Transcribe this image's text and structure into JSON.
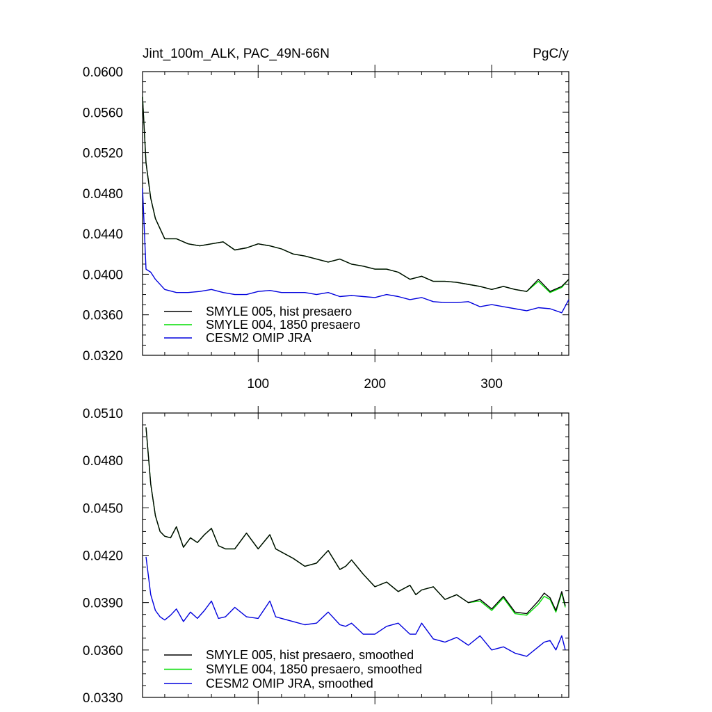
{
  "chart_data": [
    {
      "type": "line",
      "title": "Jint_100m_ALK, PAC_49N-66N",
      "units": "PgC/y",
      "xlim": [
        1,
        366
      ],
      "ylim": [
        0.032,
        0.06
      ],
      "y_ticks": [
        "0.0320",
        "0.0360",
        "0.0400",
        "0.0440",
        "0.0480",
        "0.0520",
        "0.0560",
        "0.0600"
      ],
      "x_ticks": [
        "100",
        "200",
        "300"
      ],
      "legend_position": "bottom-left",
      "series": [
        {
          "name": "SMYLE 005, hist presaero",
          "color": "#000000",
          "x": [
            1,
            4,
            8,
            12,
            20,
            30,
            40,
            50,
            60,
            70,
            80,
            90,
            100,
            110,
            120,
            130,
            140,
            150,
            160,
            170,
            180,
            190,
            200,
            210,
            220,
            230,
            240,
            250,
            260,
            270,
            280,
            290,
            300,
            310,
            320,
            330,
            340,
            350,
            360,
            366
          ],
          "values": [
            0.0575,
            0.051,
            0.0475,
            0.0455,
            0.0435,
            0.0435,
            0.043,
            0.0428,
            0.043,
            0.0432,
            0.0424,
            0.0426,
            0.043,
            0.0428,
            0.0425,
            0.042,
            0.0418,
            0.0415,
            0.0412,
            0.0415,
            0.041,
            0.0408,
            0.0405,
            0.0405,
            0.0402,
            0.0395,
            0.0398,
            0.0393,
            0.0393,
            0.0392,
            0.039,
            0.0388,
            0.0385,
            0.0388,
            0.0385,
            0.0383,
            0.0395,
            0.0383,
            0.0388,
            0.0395
          ]
        },
        {
          "name": "SMYLE 004, 1850 presaero",
          "color": "#00dd00",
          "x": [
            1,
            4,
            8,
            12,
            20,
            30,
            40,
            50,
            60,
            70,
            80,
            90,
            100,
            110,
            120,
            130,
            140,
            150,
            160,
            170,
            180,
            190,
            200,
            210,
            220,
            230,
            240,
            250,
            260,
            270,
            280,
            290,
            300,
            310,
            320,
            330,
            340,
            350,
            360,
            366
          ],
          "values": [
            0.0575,
            0.051,
            0.0475,
            0.0455,
            0.0435,
            0.0435,
            0.043,
            0.0428,
            0.043,
            0.0432,
            0.0424,
            0.0426,
            0.043,
            0.0428,
            0.0425,
            0.042,
            0.0418,
            0.0415,
            0.0412,
            0.0415,
            0.041,
            0.0408,
            0.0405,
            0.0405,
            0.0402,
            0.0395,
            0.0398,
            0.0393,
            0.0393,
            0.0392,
            0.039,
            0.0388,
            0.0385,
            0.0388,
            0.0385,
            0.0383,
            0.0393,
            0.0382,
            0.0387,
            0.0395
          ]
        },
        {
          "name": "CESM2 OMIP JRA",
          "color": "#0000dd",
          "x": [
            1,
            4,
            8,
            12,
            20,
            30,
            40,
            50,
            60,
            70,
            80,
            90,
            100,
            110,
            120,
            130,
            140,
            150,
            160,
            170,
            180,
            190,
            200,
            210,
            220,
            230,
            240,
            250,
            260,
            270,
            280,
            290,
            300,
            310,
            320,
            330,
            340,
            350,
            360,
            366
          ],
          "values": [
            0.0485,
            0.0405,
            0.0402,
            0.0395,
            0.0385,
            0.0382,
            0.0382,
            0.0383,
            0.0385,
            0.0382,
            0.038,
            0.038,
            0.0383,
            0.0384,
            0.0382,
            0.0382,
            0.0382,
            0.038,
            0.0382,
            0.0378,
            0.0379,
            0.0378,
            0.0377,
            0.038,
            0.0378,
            0.0375,
            0.0377,
            0.0373,
            0.0372,
            0.0372,
            0.0373,
            0.0368,
            0.037,
            0.0368,
            0.0366,
            0.0364,
            0.0367,
            0.0366,
            0.0362,
            0.0375
          ]
        }
      ]
    },
    {
      "type": "line",
      "title": "",
      "units": "",
      "xlim": [
        1,
        366
      ],
      "ylim": [
        0.033,
        0.051
      ],
      "y_ticks": [
        "0.0330",
        "0.0360",
        "0.0390",
        "0.0420",
        "0.0450",
        "0.0480",
        "0.0510"
      ],
      "x_ticks": [],
      "legend_position": "bottom-left",
      "series": [
        {
          "name": "SMYLE 005, hist presaero, smoothed",
          "color": "#000000",
          "x": [
            4,
            8,
            12,
            16,
            20,
            25,
            30,
            36,
            42,
            48,
            54,
            60,
            66,
            72,
            80,
            90,
            100,
            110,
            115,
            120,
            130,
            140,
            150,
            160,
            170,
            175,
            180,
            190,
            200,
            210,
            220,
            230,
            235,
            240,
            250,
            260,
            270,
            280,
            290,
            300,
            310,
            320,
            330,
            340,
            345,
            350,
            355,
            360,
            363
          ],
          "values": [
            0.0501,
            0.0465,
            0.0445,
            0.0435,
            0.0432,
            0.0431,
            0.0438,
            0.0425,
            0.0431,
            0.0428,
            0.0433,
            0.0437,
            0.0426,
            0.0424,
            0.0424,
            0.0434,
            0.0424,
            0.0433,
            0.0424,
            0.0422,
            0.0418,
            0.0413,
            0.0415,
            0.0423,
            0.0411,
            0.0413,
            0.0417,
            0.0408,
            0.04,
            0.0403,
            0.0397,
            0.0401,
            0.0395,
            0.0398,
            0.04,
            0.0392,
            0.0395,
            0.039,
            0.0392,
            0.0386,
            0.0394,
            0.0384,
            0.0383,
            0.0391,
            0.0396,
            0.0393,
            0.0385,
            0.0397,
            0.0388
          ]
        },
        {
          "name": "SMYLE 004, 1850 presaero, smoothed",
          "color": "#00dd00",
          "x": [
            4,
            8,
            12,
            16,
            20,
            25,
            30,
            36,
            42,
            48,
            54,
            60,
            66,
            72,
            80,
            90,
            100,
            110,
            115,
            120,
            130,
            140,
            150,
            160,
            170,
            175,
            180,
            190,
            200,
            210,
            220,
            230,
            235,
            240,
            250,
            260,
            270,
            280,
            290,
            300,
            310,
            320,
            330,
            340,
            345,
            350,
            355,
            360,
            363
          ],
          "values": [
            0.0501,
            0.0465,
            0.0445,
            0.0435,
            0.0432,
            0.0431,
            0.0438,
            0.0425,
            0.0431,
            0.0428,
            0.0433,
            0.0437,
            0.0426,
            0.0424,
            0.0424,
            0.0434,
            0.0424,
            0.0433,
            0.0424,
            0.0422,
            0.0418,
            0.0413,
            0.0415,
            0.0423,
            0.0411,
            0.0413,
            0.0417,
            0.0408,
            0.04,
            0.0403,
            0.0397,
            0.0401,
            0.0395,
            0.0398,
            0.04,
            0.0392,
            0.0395,
            0.039,
            0.0391,
            0.0385,
            0.0393,
            0.0383,
            0.0382,
            0.0389,
            0.0394,
            0.0392,
            0.0384,
            0.0396,
            0.0387
          ]
        },
        {
          "name": "CESM2 OMIP JRA, smoothed",
          "color": "#0000dd",
          "x": [
            4,
            8,
            12,
            16,
            20,
            25,
            30,
            36,
            42,
            48,
            54,
            60,
            66,
            72,
            80,
            90,
            100,
            110,
            115,
            120,
            130,
            140,
            150,
            160,
            170,
            175,
            180,
            190,
            200,
            210,
            220,
            230,
            235,
            240,
            250,
            260,
            270,
            280,
            290,
            300,
            310,
            320,
            330,
            340,
            345,
            350,
            355,
            360,
            363
          ],
          "values": [
            0.0419,
            0.0395,
            0.0385,
            0.0381,
            0.0379,
            0.0382,
            0.0386,
            0.0378,
            0.0384,
            0.038,
            0.0385,
            0.0391,
            0.038,
            0.0381,
            0.0387,
            0.0381,
            0.038,
            0.0391,
            0.0381,
            0.038,
            0.0378,
            0.0376,
            0.0377,
            0.0384,
            0.0376,
            0.0375,
            0.0377,
            0.037,
            0.037,
            0.0375,
            0.0377,
            0.037,
            0.037,
            0.0377,
            0.0367,
            0.0365,
            0.0368,
            0.0363,
            0.0369,
            0.036,
            0.0362,
            0.0358,
            0.0356,
            0.0362,
            0.0365,
            0.0366,
            0.036,
            0.0369,
            0.036
          ]
        }
      ]
    }
  ]
}
